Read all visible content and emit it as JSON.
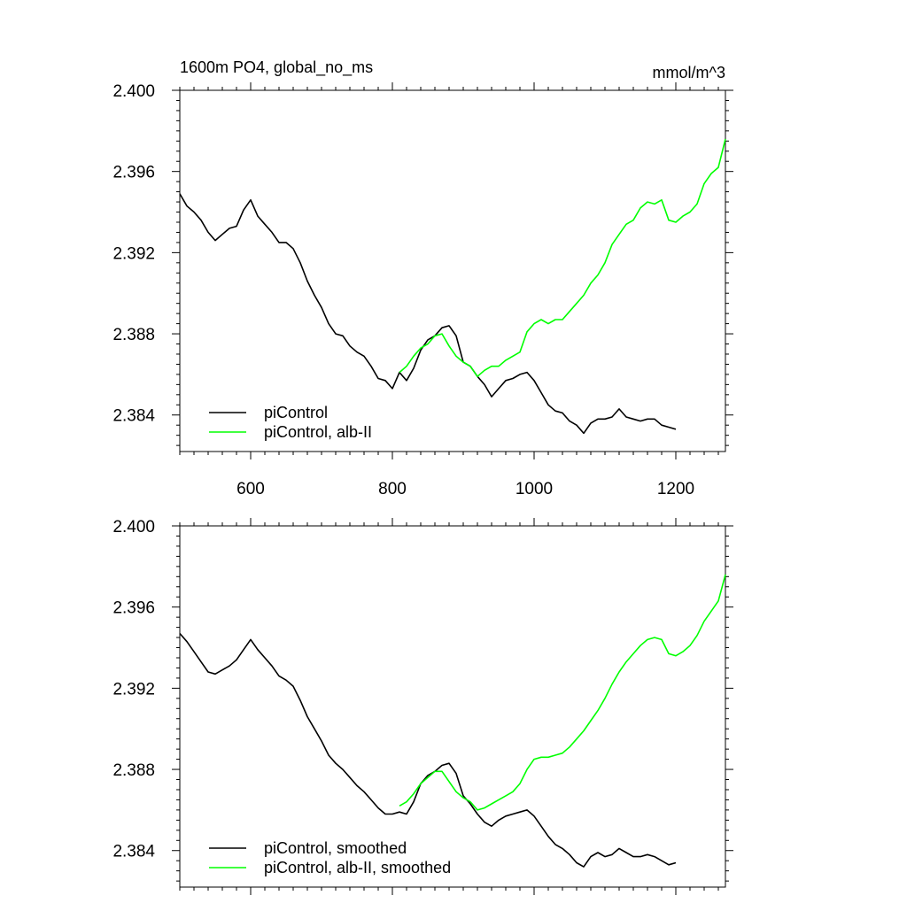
{
  "header": {
    "title_left": "1600m PO4, global_no_ms",
    "title_right": "mmol/m^3"
  },
  "chart_data": [
    {
      "type": "line",
      "xlim": [
        500,
        1270
      ],
      "ylim": [
        2.3822,
        2.4
      ],
      "xticks": [
        600,
        800,
        1000,
        1200
      ],
      "xtick_labels": [
        "600",
        "800",
        "1000",
        "1200"
      ],
      "yticks": [
        2.384,
        2.388,
        2.392,
        2.396,
        2.4
      ],
      "ytick_labels": [
        "2.384",
        "2.388",
        "2.392",
        "2.396",
        "2.400"
      ],
      "legend_placement": "bottom-left",
      "series": [
        {
          "name": "piControl",
          "color": "#000000",
          "x": [
            500,
            510,
            520,
            530,
            540,
            550,
            560,
            570,
            580,
            590,
            600,
            610,
            620,
            630,
            640,
            650,
            660,
            670,
            680,
            690,
            700,
            710,
            720,
            730,
            740,
            750,
            760,
            770,
            780,
            790,
            800,
            810,
            820,
            830,
            840,
            850,
            860,
            870,
            880,
            890,
            900,
            910,
            920,
            930,
            940,
            950,
            960,
            970,
            980,
            990,
            1000,
            1010,
            1020,
            1030,
            1040,
            1050,
            1060,
            1070,
            1080,
            1090,
            1100,
            1110,
            1120,
            1130,
            1140,
            1150,
            1160,
            1170,
            1180,
            1190,
            1200
          ],
          "values": [
            2.3949,
            2.3943,
            2.394,
            2.3936,
            2.393,
            2.3926,
            2.3929,
            2.3932,
            2.3933,
            2.3941,
            2.3946,
            2.3938,
            2.3934,
            2.393,
            2.3925,
            2.3925,
            2.3922,
            2.3915,
            2.3906,
            2.3899,
            2.3893,
            2.3885,
            2.388,
            2.3879,
            2.3874,
            2.3871,
            2.3869,
            2.3864,
            2.3858,
            2.3857,
            2.3853,
            2.3861,
            2.3857,
            2.3863,
            2.3872,
            2.3877,
            2.3879,
            2.3883,
            2.3884,
            2.3879,
            2.3866,
            2.3864,
            2.3859,
            2.3855,
            2.3849,
            2.3853,
            2.3857,
            2.3858,
            2.386,
            2.3861,
            2.3857,
            2.3851,
            2.3845,
            2.3842,
            2.3841,
            2.3837,
            2.3835,
            2.3831,
            2.3836,
            2.3838,
            2.3838,
            2.3839,
            2.3843,
            2.3839,
            2.3838,
            2.3837,
            2.3838,
            2.3838,
            2.3835,
            2.3834,
            2.3833
          ]
        },
        {
          "name": "piControl, alb-II",
          "color": "#00ff00",
          "x": [
            810,
            820,
            830,
            840,
            850,
            860,
            870,
            880,
            890,
            900,
            910,
            920,
            930,
            940,
            950,
            960,
            970,
            980,
            990,
            1000,
            1010,
            1020,
            1030,
            1040,
            1050,
            1060,
            1070,
            1080,
            1090,
            1100,
            1110,
            1120,
            1130,
            1140,
            1150,
            1160,
            1170,
            1180,
            1190,
            1200,
            1210,
            1220,
            1230,
            1240,
            1250,
            1260,
            1270
          ],
          "values": [
            2.3861,
            2.3864,
            2.3869,
            2.3873,
            2.3875,
            2.3879,
            2.388,
            2.3874,
            2.3869,
            2.3866,
            2.3864,
            2.3859,
            2.3862,
            2.3864,
            2.3864,
            2.3867,
            2.3869,
            2.3871,
            2.3881,
            2.3885,
            2.3887,
            2.3885,
            2.3887,
            2.3887,
            2.3891,
            2.3895,
            2.3899,
            2.3905,
            2.3909,
            2.3915,
            2.3924,
            2.3929,
            2.3934,
            2.3936,
            2.3942,
            2.3945,
            2.3944,
            2.3946,
            2.3936,
            2.3935,
            2.3938,
            2.394,
            2.3944,
            2.3954,
            2.3959,
            2.3962,
            2.3976
          ]
        }
      ]
    },
    {
      "type": "line",
      "xlim": [
        500,
        1270
      ],
      "ylim": [
        2.3822,
        2.4
      ],
      "xticks": [
        600,
        800,
        1000,
        1200
      ],
      "yticks": [
        2.384,
        2.388,
        2.392,
        2.396,
        2.4
      ],
      "ytick_labels": [
        "2.384",
        "2.388",
        "2.392",
        "2.396",
        "2.400"
      ],
      "legend_placement": "bottom-left",
      "series": [
        {
          "name": "piControl, smoothed",
          "color": "#000000",
          "x": [
            500,
            510,
            520,
            530,
            540,
            550,
            560,
            570,
            580,
            590,
            600,
            610,
            620,
            630,
            640,
            650,
            660,
            670,
            680,
            690,
            700,
            710,
            720,
            730,
            740,
            750,
            760,
            770,
            780,
            790,
            800,
            810,
            820,
            830,
            840,
            850,
            860,
            870,
            880,
            890,
            900,
            910,
            920,
            930,
            940,
            950,
            960,
            970,
            980,
            990,
            1000,
            1010,
            1020,
            1030,
            1040,
            1050,
            1060,
            1070,
            1080,
            1090,
            1100,
            1110,
            1120,
            1130,
            1140,
            1150,
            1160,
            1170,
            1180,
            1190,
            1200
          ],
          "values": [
            2.3947,
            2.3943,
            2.3938,
            2.3933,
            2.3928,
            2.3927,
            2.3929,
            2.3931,
            2.3934,
            2.3939,
            2.3944,
            2.3939,
            2.3935,
            2.3931,
            2.3926,
            2.3924,
            2.3921,
            2.3914,
            2.3906,
            2.39,
            2.3894,
            2.3887,
            2.3883,
            2.388,
            2.3876,
            2.3872,
            2.3869,
            2.3865,
            2.3861,
            2.3858,
            2.3858,
            2.3859,
            2.3858,
            2.3864,
            2.3873,
            2.3877,
            2.3879,
            2.3882,
            2.3883,
            2.3878,
            2.3867,
            2.3863,
            2.3858,
            2.3854,
            2.3852,
            2.3855,
            2.3857,
            2.3858,
            2.3859,
            2.386,
            2.3857,
            2.3852,
            2.3847,
            2.3843,
            2.3841,
            2.3838,
            2.3834,
            2.3832,
            2.3837,
            2.3839,
            2.3837,
            2.3838,
            2.3841,
            2.3839,
            2.3837,
            2.3837,
            2.3838,
            2.3837,
            2.3835,
            2.3833,
            2.3834
          ]
        },
        {
          "name": "piControl, alb-II, smoothed",
          "color": "#00ff00",
          "x": [
            810,
            820,
            830,
            840,
            850,
            860,
            870,
            880,
            890,
            900,
            910,
            920,
            930,
            940,
            950,
            960,
            970,
            980,
            990,
            1000,
            1010,
            1020,
            1030,
            1040,
            1050,
            1060,
            1070,
            1080,
            1090,
            1100,
            1110,
            1120,
            1130,
            1140,
            1150,
            1160,
            1170,
            1180,
            1190,
            1200,
            1210,
            1220,
            1230,
            1240,
            1250,
            1260,
            1270
          ],
          "values": [
            2.3862,
            2.3864,
            2.3868,
            2.3873,
            2.3876,
            2.3879,
            2.3879,
            2.3874,
            2.3869,
            2.3866,
            2.3864,
            2.386,
            2.3861,
            2.3863,
            2.3865,
            2.3867,
            2.3869,
            2.3873,
            2.388,
            2.3885,
            2.3886,
            2.3886,
            2.3887,
            2.3888,
            2.3891,
            2.3895,
            2.3899,
            2.3904,
            2.3909,
            2.3915,
            2.3922,
            2.3928,
            2.3933,
            2.3937,
            2.3941,
            2.3944,
            2.3945,
            2.3944,
            2.3937,
            2.3936,
            2.3938,
            2.3941,
            2.3946,
            2.3953,
            2.3958,
            2.3963,
            2.3976
          ]
        }
      ]
    }
  ]
}
